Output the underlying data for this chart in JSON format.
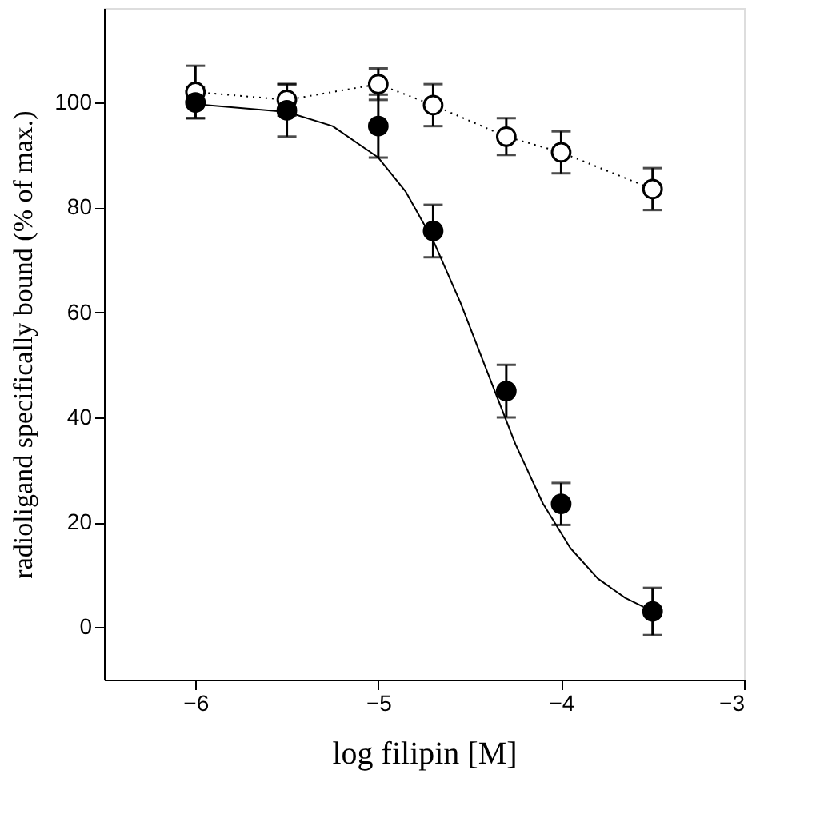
{
  "chart_data": {
    "type": "scatter",
    "xlabel": "log filipin [M]",
    "ylabel": "radioligand specifically bound (% of max.)",
    "xlim": [
      -6.5,
      -3
    ],
    "xticks": [
      -6,
      -5,
      -4,
      -3
    ],
    "ylim": [
      -10,
      118
    ],
    "yticks": [
      0,
      20,
      40,
      60,
      80,
      100
    ],
    "grid": false,
    "series": [
      {
        "color": "#000000",
        "marker": "circle",
        "x": [
          -6,
          -5.5,
          -5,
          -4.7,
          -4.3,
          -4,
          -3.5
        ],
        "values": [
          100,
          98.5,
          95.5,
          75.5,
          45,
          23.5,
          3
        ],
        "errors": [
          3,
          5,
          6,
          5,
          5,
          4,
          4.5
        ]
      },
      {
        "type": "line",
        "color": "#000000",
        "marker": "circle",
        "line_style": "dotted",
        "x": [
          -6,
          -5.5,
          -5,
          -4.7,
          -4.3,
          -4,
          -3.5
        ],
        "values": [
          102,
          100.5,
          103.5,
          99.5,
          93.5,
          90.5,
          83.5
        ],
        "errors": [
          5,
          3,
          3,
          4,
          3.5,
          4,
          4
        ]
      },
      {
        "type": "line",
        "color": "#000000",
        "marker": "none",
        "line_style": "solid",
        "x": [
          -6,
          -5.5,
          -5.25,
          -5,
          -4.85,
          -4.7,
          -4.55,
          -4.4,
          -4.25,
          -4.1,
          -3.95,
          -3.8,
          -3.65,
          -3.55
        ],
        "values": [
          99.7,
          98.2,
          95.5,
          89.5,
          83,
          73.7,
          61.8,
          48.3,
          34.9,
          23.6,
          15.1,
          9.3,
          5.6,
          3.9
        ]
      }
    ]
  }
}
